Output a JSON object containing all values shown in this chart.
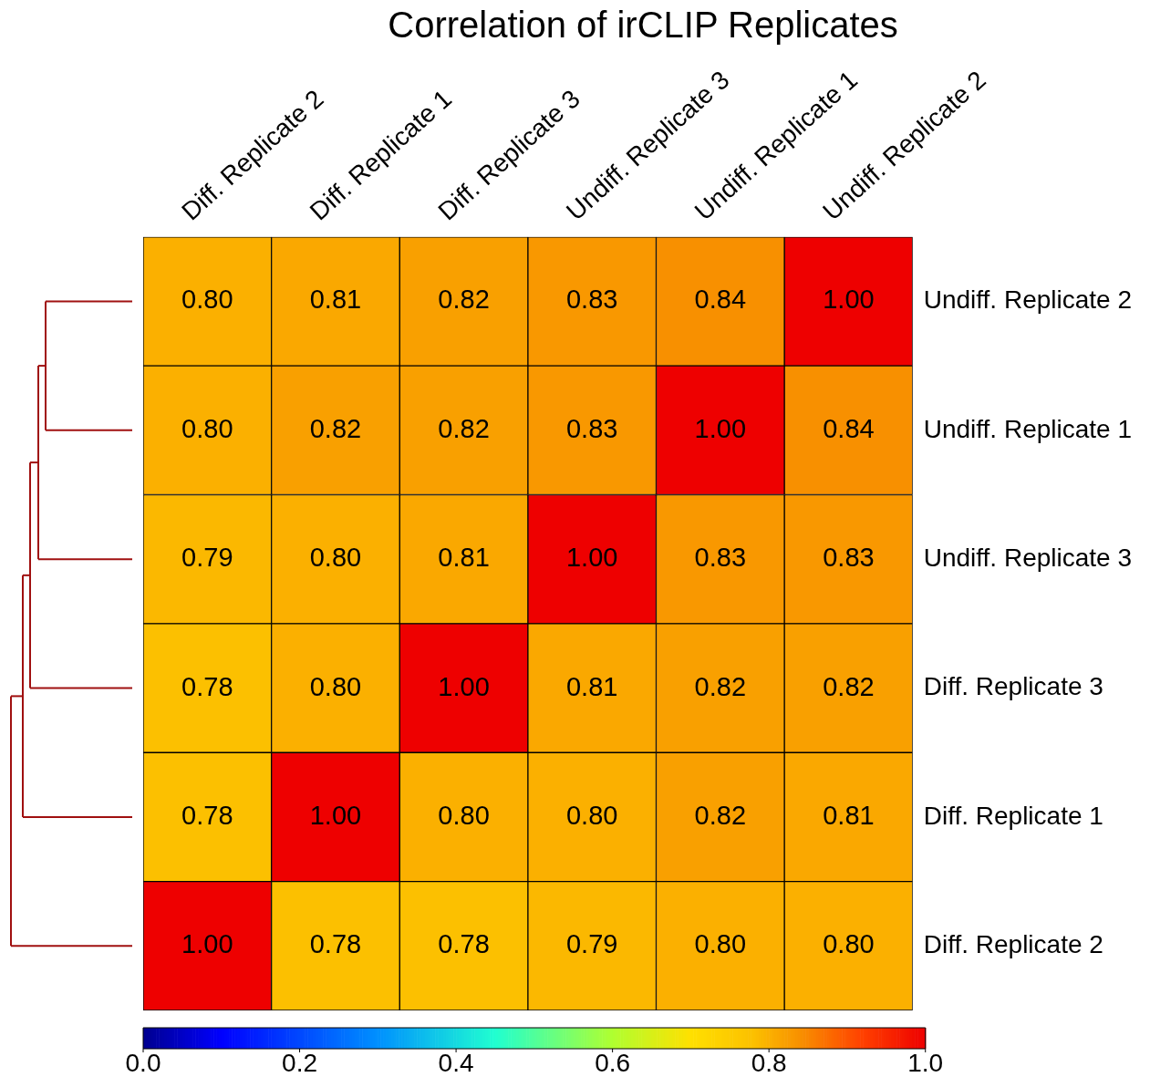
{
  "chart_data": {
    "type": "heatmap",
    "title": "Correlation of irCLIP Replicates",
    "categories": [
      "Diff. Replicate 2",
      "Diff. Replicate 1",
      "Diff. Replicate 3",
      "Undiff. Replicate 3",
      "Undiff. Replicate 1",
      "Undiff. Replicate 2"
    ],
    "y_categories": [
      "Undiff. Replicate 2",
      "Undiff. Replicate 1",
      "Undiff. Replicate 3",
      "Diff. Replicate 3",
      "Diff. Replicate 1",
      "Diff. Replicate 2"
    ],
    "cells": [
      [
        0.8,
        0.81,
        0.82,
        0.83,
        0.84,
        1.0
      ],
      [
        0.8,
        0.82,
        0.82,
        0.83,
        1.0,
        0.84
      ],
      [
        0.79,
        0.8,
        0.81,
        1.0,
        0.83,
        0.83
      ],
      [
        0.78,
        0.8,
        1.0,
        0.81,
        0.82,
        0.82
      ],
      [
        0.78,
        1.0,
        0.8,
        0.8,
        0.82,
        0.81
      ],
      [
        1.0,
        0.78,
        0.78,
        0.79,
        0.8,
        0.8
      ]
    ],
    "cell_labels": [
      [
        "0.80",
        "0.81",
        "0.82",
        "0.83",
        "0.84",
        "1.00"
      ],
      [
        "0.80",
        "0.82",
        "0.82",
        "0.83",
        "1.00",
        "0.84"
      ],
      [
        "0.79",
        "0.80",
        "0.81",
        "1.00",
        "0.83",
        "0.83"
      ],
      [
        "0.78",
        "0.80",
        "1.00",
        "0.81",
        "0.82",
        "0.82"
      ],
      [
        "0.78",
        "1.00",
        "0.80",
        "0.80",
        "0.82",
        "0.81"
      ],
      [
        "1.00",
        "0.78",
        "0.78",
        "0.79",
        "0.80",
        "0.80"
      ]
    ],
    "clim": [
      0,
      1
    ],
    "cticks": [
      {
        "value": 0,
        "label": "0.0"
      },
      {
        "value": 0.2,
        "label": "0.2"
      },
      {
        "value": 0.4,
        "label": "0.4"
      },
      {
        "value": 0.6,
        "label": "0.6"
      },
      {
        "value": 0.8,
        "label": "0.8"
      },
      {
        "value": 1,
        "label": "1.0"
      }
    ],
    "data_labels": true
  }
}
